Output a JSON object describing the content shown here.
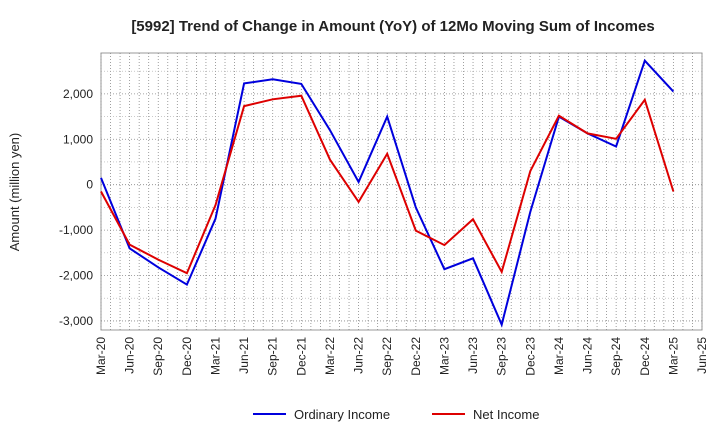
{
  "chart_data": {
    "type": "line",
    "title": "[5992]  Trend of Change in Amount (YoY) of 12Mo Moving Sum of Incomes",
    "ylabel": "Amount (million yen)",
    "xlabel": "",
    "ylim": [
      -3200,
      2900
    ],
    "yticks": [
      -3000,
      -2000,
      -1000,
      0,
      1000,
      2000
    ],
    "ytick_labels": [
      "-3,000",
      "-2,000",
      "-1,000",
      "0",
      "1,000",
      "2,000"
    ],
    "categories": [
      "Mar-20",
      "Jun-20",
      "Sep-20",
      "Dec-20",
      "Mar-21",
      "Jun-21",
      "Sep-21",
      "Dec-21",
      "Mar-22",
      "Jun-22",
      "Sep-22",
      "Dec-22",
      "Mar-23",
      "Jun-23",
      "Sep-23",
      "Dec-23",
      "Mar-24",
      "Jun-24",
      "Sep-24",
      "Dec-24",
      "Mar-25",
      "Jun-25"
    ],
    "grid": true,
    "legend_position": "bottom",
    "series": [
      {
        "name": "Ordinary Income",
        "color": "#0000dd",
        "values": [
          150,
          -1400,
          -1820,
          -2200,
          -750,
          2230,
          2320,
          2220,
          1200,
          60,
          1500,
          -500,
          -1860,
          -1620,
          -3080,
          -600,
          1500,
          1130,
          840,
          2730,
          2050,
          null
        ]
      },
      {
        "name": "Net Income",
        "color": "#dd0000",
        "values": [
          -150,
          -1320,
          -1650,
          -1950,
          -450,
          1730,
          1880,
          1960,
          550,
          -380,
          680,
          -1010,
          -1330,
          -760,
          -1920,
          300,
          1520,
          1130,
          1010,
          1870,
          -150,
          null
        ]
      }
    ]
  }
}
